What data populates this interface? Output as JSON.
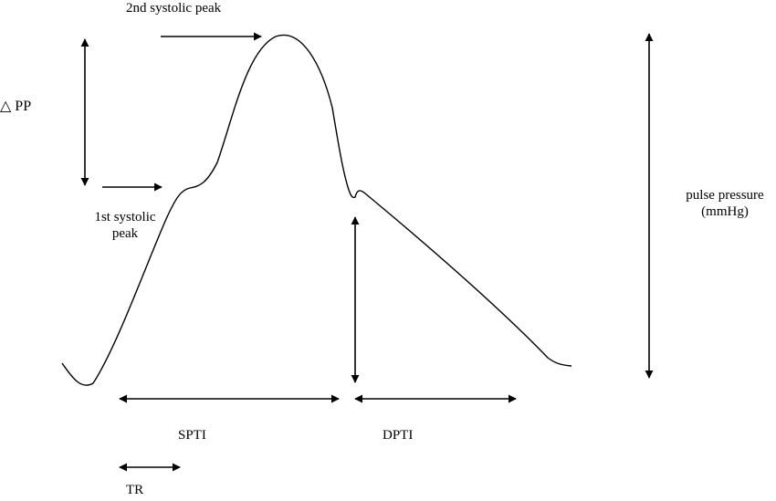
{
  "labels": {
    "second_peak": "2nd systolic peak",
    "delta_pp": "△ PP",
    "first_peak_line1": "1st systolic",
    "first_peak_line2": "peak",
    "pulse_pressure_line1": "pulse pressure",
    "pulse_pressure_line2": "(mmHg)",
    "spti": "SPTI",
    "dpti": "DPTI",
    "tr": "TR"
  }
}
